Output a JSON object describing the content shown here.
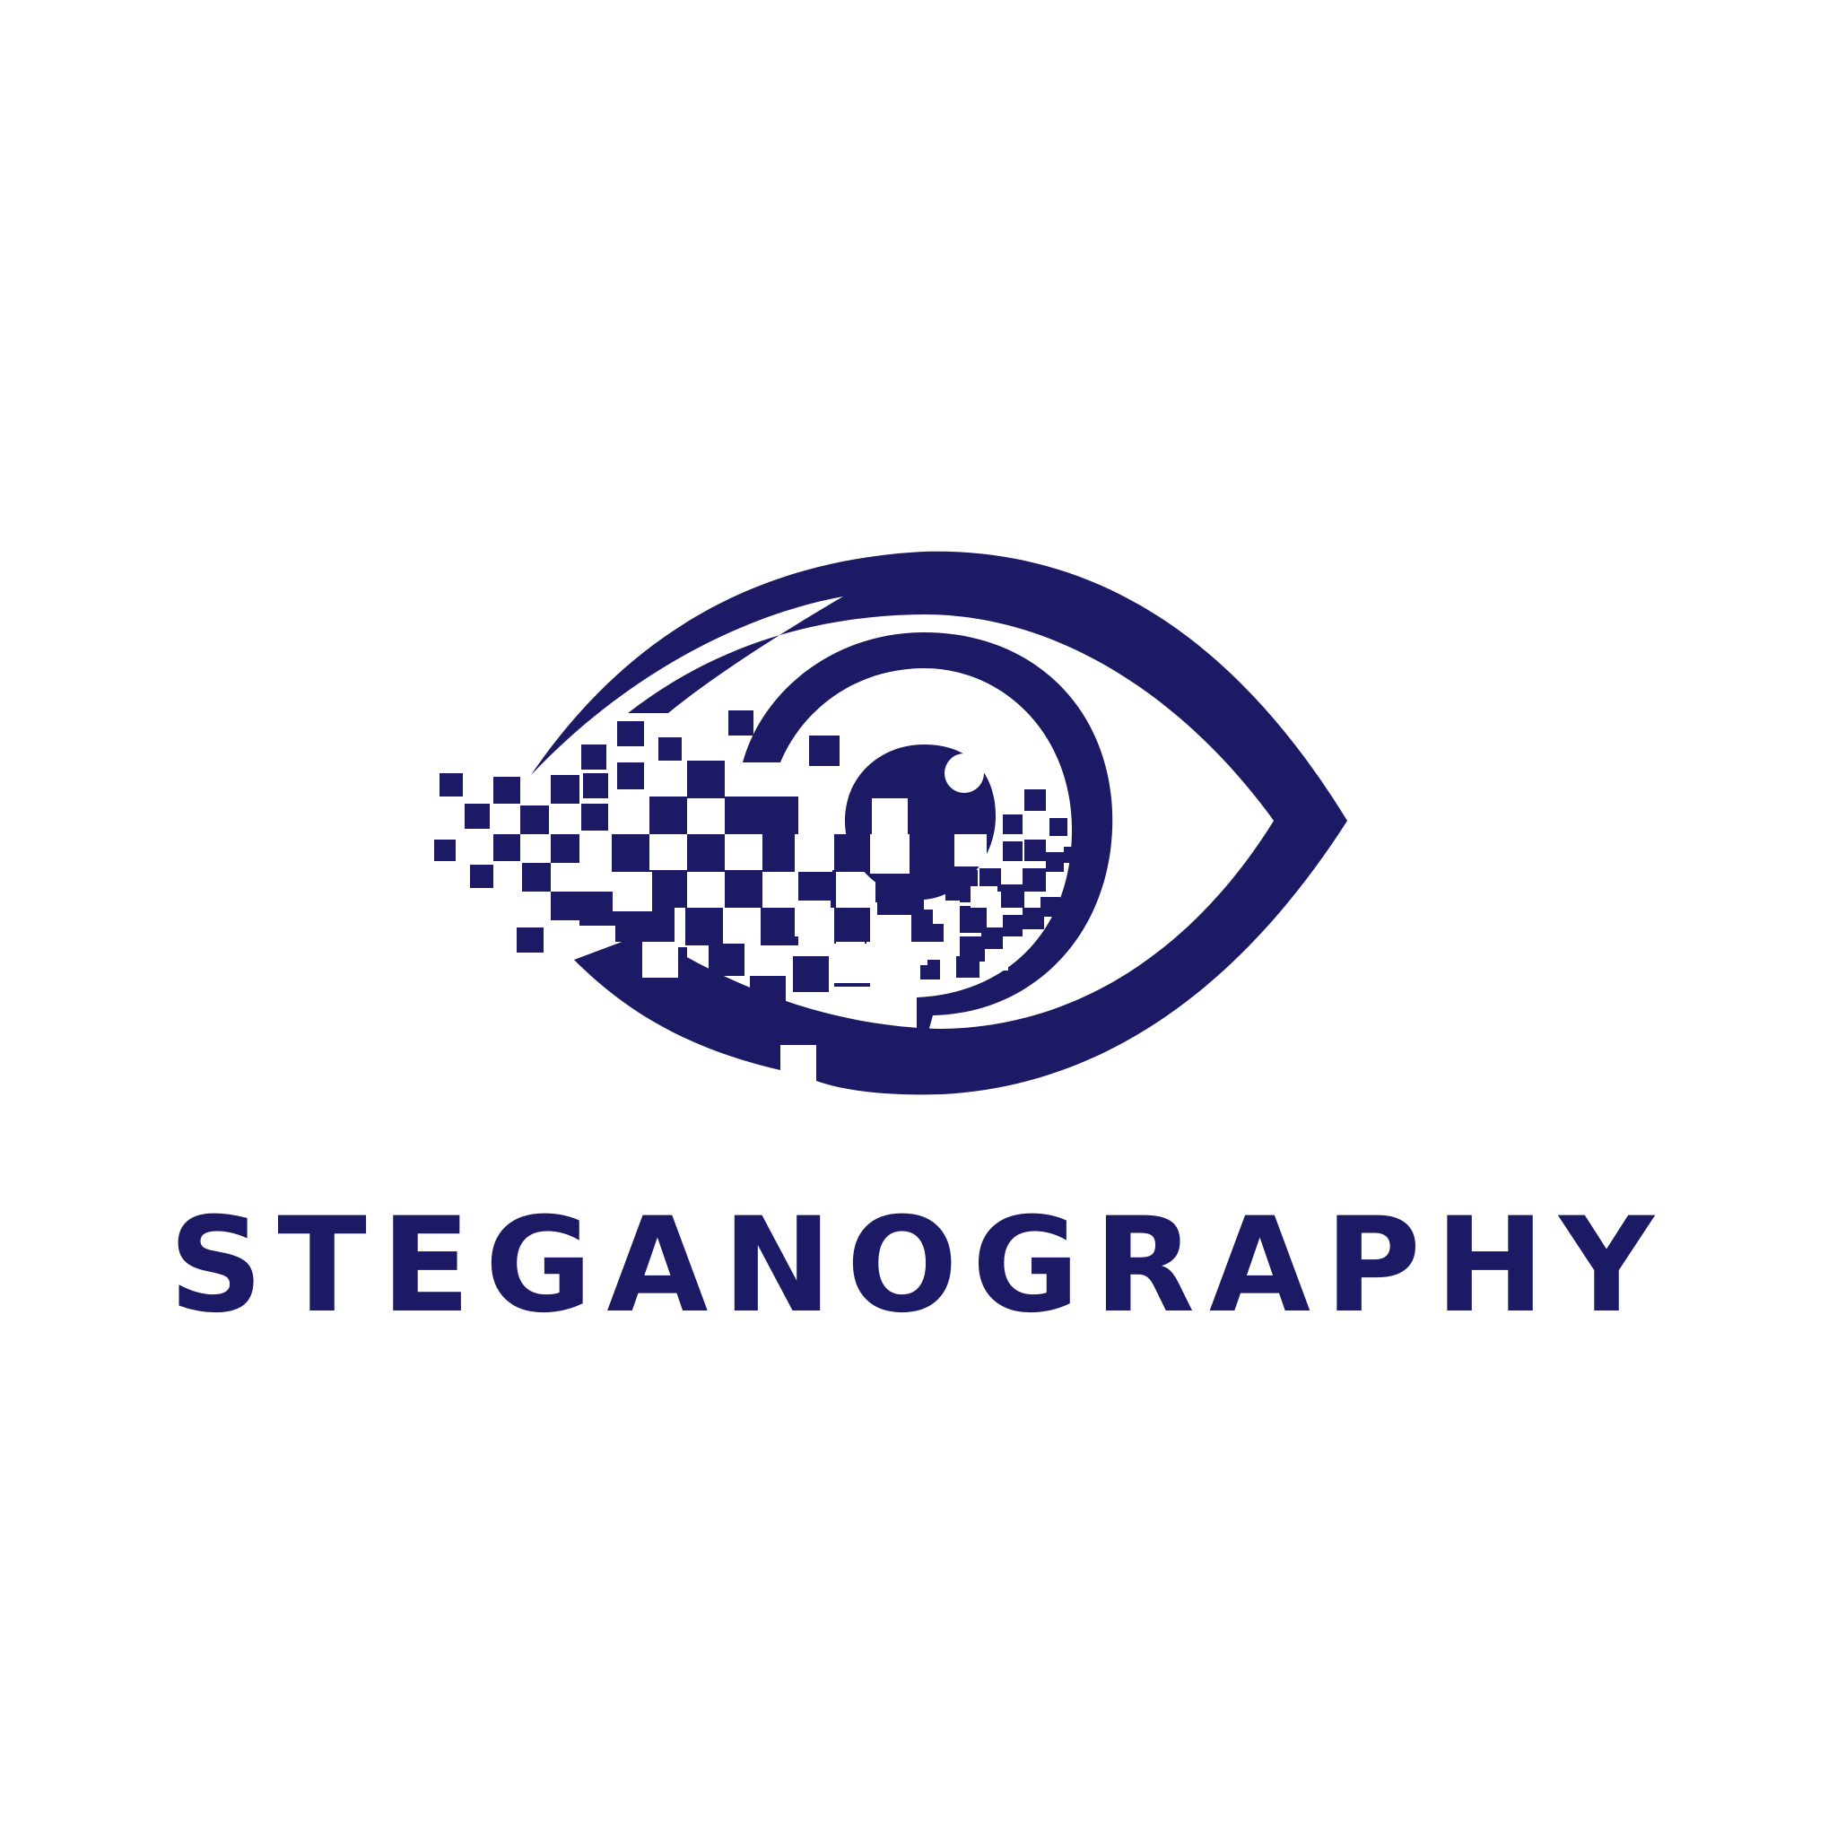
{
  "logo": {
    "wordmark": "STEGANOGRAPHY",
    "icon": "pixelated-eye-icon",
    "colors": {
      "brand": "#1c1a64",
      "background": "#ffffff"
    }
  }
}
